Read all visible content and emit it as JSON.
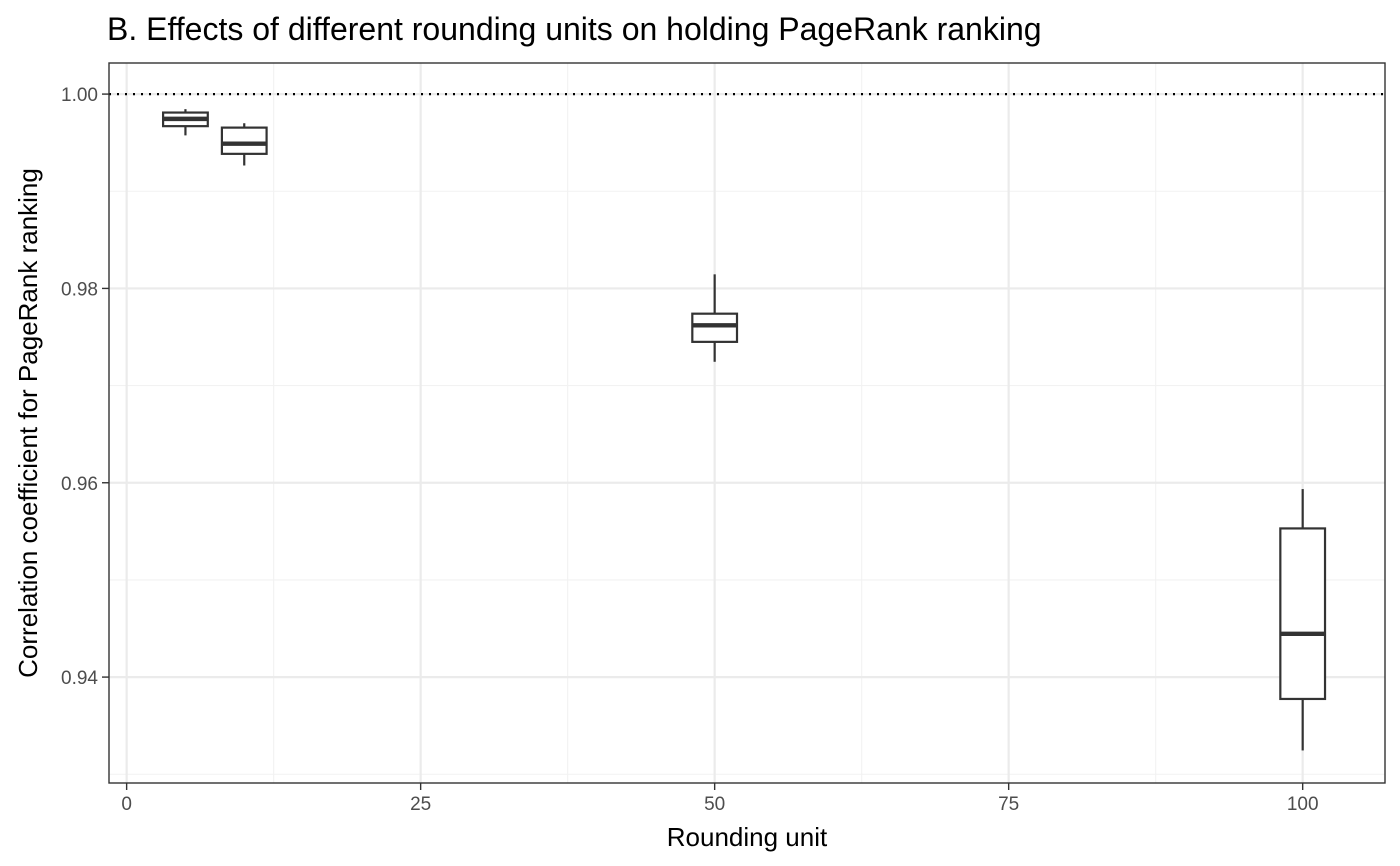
{
  "chart_data": {
    "type": "boxplot",
    "title": "B. Effects of different rounding units on holding PageRank ranking",
    "xlabel": "Rounding unit",
    "ylabel": "Correlation coefficient for PageRank ranking",
    "xlim": [
      -1.5,
      107
    ],
    "ylim": [
      0.9291,
      1.0032
    ],
    "x_ticks": [
      0,
      25,
      50,
      75,
      100
    ],
    "x_tick_labels": [
      "0",
      "25",
      "50",
      "75",
      "100"
    ],
    "y_ticks": [
      0.94,
      0.96,
      0.98,
      1.0
    ],
    "y_tick_labels": [
      "0.94",
      "0.96",
      "0.98",
      "1.00"
    ],
    "grid": true,
    "reference_line": {
      "y": 1.0,
      "style": "dotted"
    },
    "boxes": [
      {
        "x": 5,
        "width": 3.8,
        "min": 0.99575,
        "q1": 0.9967,
        "median": 0.99745,
        "q3": 0.9981,
        "max": 0.99845
      },
      {
        "x": 10,
        "width": 3.8,
        "min": 0.99265,
        "q1": 0.99385,
        "median": 0.9949,
        "q3": 0.99655,
        "max": 0.997
      },
      {
        "x": 50,
        "width": 3.8,
        "min": 0.97245,
        "q1": 0.9745,
        "median": 0.9762,
        "q3": 0.9774,
        "max": 0.98145
      },
      {
        "x": 100,
        "width": 3.8,
        "min": 0.93245,
        "q1": 0.93775,
        "median": 0.94445,
        "q3": 0.9553,
        "max": 0.95935
      }
    ]
  }
}
